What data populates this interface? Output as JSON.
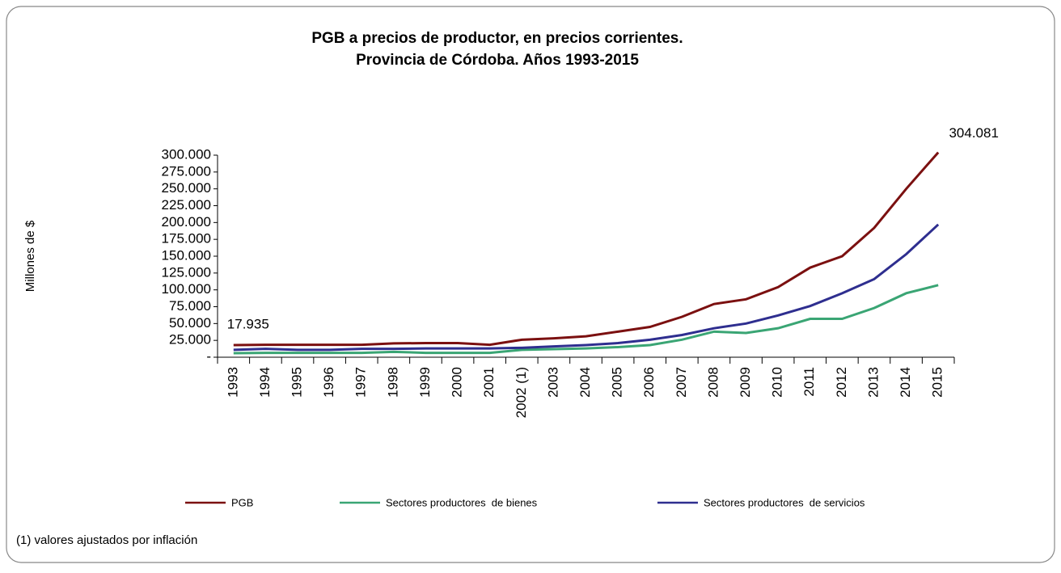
{
  "chart_data": {
    "type": "line",
    "title": [
      "PGB a precios de productor, en precios corrientes.",
      "Provincia de Córdoba. Años 1993-2015"
    ],
    "y_label": "Millones de $",
    "footnote": "(1) valores ajustados por inflación",
    "categories": [
      "1993",
      "1994",
      "1995",
      "1996",
      "1997",
      "1998",
      "1999",
      "2000",
      "2001",
      "2002 (1)",
      "2003",
      "2004",
      "2005",
      "2006",
      "2007",
      "2008",
      "2009",
      "2010",
      "2011",
      "2012",
      "2013",
      "2014",
      "2015"
    ],
    "series": [
      {
        "name": "PGB",
        "color": "#7b1010",
        "values": [
          17935,
          18500,
          18500,
          18500,
          18500,
          20500,
          21000,
          21000,
          18500,
          26000,
          28000,
          31000,
          38000,
          45000,
          60000,
          79000,
          86000,
          104000,
          133000,
          150000,
          192000,
          250000,
          304081
        ],
        "value_labels": [
          "17.935",
          null,
          null,
          null,
          null,
          null,
          null,
          null,
          null,
          null,
          null,
          null,
          null,
          null,
          null,
          null,
          null,
          null,
          null,
          null,
          null,
          null,
          "304.081"
        ]
      },
      {
        "name": "Sectores productores  de bienes",
        "color": "#3aa574",
        "values": [
          6000,
          6500,
          6500,
          6500,
          6500,
          8000,
          6500,
          6500,
          6500,
          11000,
          12000,
          13000,
          15000,
          18000,
          26000,
          38000,
          36000,
          43000,
          57000,
          57000,
          73000,
          95000,
          107000
        ]
      },
      {
        "name": "Sectores productores  de servicios",
        "color": "#2e2e8f",
        "values": [
          11000,
          12500,
          11000,
          11000,
          12500,
          12500,
          13000,
          13000,
          13000,
          14000,
          16000,
          18000,
          21000,
          26000,
          33000,
          43000,
          50000,
          62000,
          76000,
          95000,
          116000,
          153000,
          197000
        ]
      }
    ],
    "ylim": [
      0,
      300000
    ],
    "yticks": [
      {
        "value": 0,
        "label": "-"
      },
      {
        "value": 25000,
        "label": "25.000"
      },
      {
        "value": 50000,
        "label": "50.000"
      },
      {
        "value": 75000,
        "label": "75.000"
      },
      {
        "value": 100000,
        "label": "100.000"
      },
      {
        "value": 125000,
        "label": "125.000"
      },
      {
        "value": 150000,
        "label": "150.000"
      },
      {
        "value": 175000,
        "label": "175.000"
      },
      {
        "value": 200000,
        "label": "200.000"
      },
      {
        "value": 225000,
        "label": "225.000"
      },
      {
        "value": 250000,
        "label": "250.000"
      },
      {
        "value": 275000,
        "label": "275.000"
      },
      {
        "value": 300000,
        "label": "300.000"
      }
    ]
  }
}
